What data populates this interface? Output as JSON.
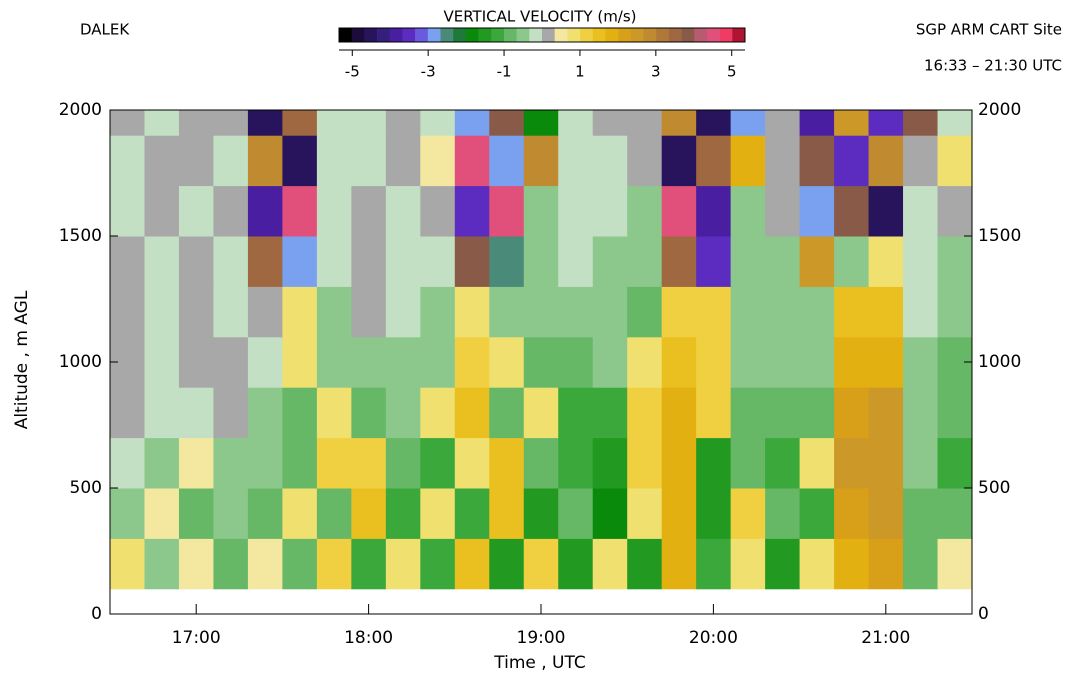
{
  "chart_data": {
    "type": "heatmap",
    "title": "DALEK",
    "colorbar_title": "VERTICAL VELOCITY (m/s)",
    "site": "SGP ARM CART Site",
    "time_range": "16:33 – 21:30 UTC",
    "x_label": "Time , UTC",
    "y_label": "Altitude , m AGL",
    "xlim": [
      16.5,
      21.5
    ],
    "xticks": [
      {
        "value": 17,
        "label": "17:00"
      },
      {
        "value": 18,
        "label": "18:00"
      },
      {
        "value": 19,
        "label": "19:00"
      },
      {
        "value": 20,
        "label": "20:00"
      },
      {
        "value": 21,
        "label": "21:00"
      }
    ],
    "ylim": [
      0,
      2000
    ],
    "yticks": [
      0,
      500,
      1000,
      1500,
      2000
    ],
    "clim": [
      -5.35,
      5.35
    ],
    "cticks": [
      -5,
      -3,
      -1,
      1,
      3,
      5
    ],
    "colors": [
      "#000000",
      "#1c0c3c",
      "#28145c",
      "#34207c",
      "#4a1ea0",
      "#5c2cc0",
      "#6a5ae0",
      "#7aa0f0",
      "#4a8a78",
      "#1e7a3a",
      "#0a8a0a",
      "#229a22",
      "#3aa83a",
      "#66b866",
      "#8cc88c",
      "#c4e0c4",
      "#a8a8a8",
      "#f4e8a0",
      "#f0e070",
      "#f0d040",
      "#eac020",
      "#e2b010",
      "#d8a018",
      "#cc9828",
      "#c08a30",
      "#b07838",
      "#a06840",
      "#8a5a48",
      "#b85a70",
      "#e0507a",
      "#f03c64",
      "#b01430"
    ],
    "x_edges": [
      16.5,
      16.7,
      16.9,
      17.1,
      17.3,
      17.5,
      17.7,
      17.9,
      18.1,
      18.3,
      18.5,
      18.7,
      18.9,
      19.1,
      19.3,
      19.5,
      19.7,
      19.9,
      20.1,
      20.3,
      20.5,
      20.7,
      20.9,
      21.1,
      21.3,
      21.5
    ],
    "y_edges": [
      100,
      300,
      500,
      700,
      900,
      1100,
      1300,
      1500,
      1700,
      1900,
      2000
    ],
    "values": [
      [
        0.8,
        -0.6,
        0.5,
        -0.8,
        0.6,
        -1.0,
        1.2,
        -1.2,
        0.9,
        -1.3,
        1.5,
        -1.4,
        1.1,
        -1.6,
        0.7,
        -1.5,
        1.8,
        -1.2,
        1.0,
        -1.4,
        0.9,
        1.9,
        2.2,
        -1.0,
        0.6
      ],
      [
        -0.5,
        0.6,
        -0.8,
        -0.4,
        -1.0,
        0.9,
        -0.9,
        1.4,
        -1.1,
        0.8,
        -1.2,
        1.6,
        -1.4,
        -0.9,
        -1.8,
        1.0,
        2.0,
        -1.5,
        1.2,
        -1.0,
        -1.2,
        2.3,
        2.5,
        -0.8,
        -1.0
      ],
      [
        -0.3,
        -0.5,
        0.4,
        -0.6,
        -0.5,
        -0.8,
        1.3,
        1.1,
        -1.0,
        -1.2,
        0.9,
        1.5,
        -1.0,
        -1.3,
        -1.6,
        1.2,
        1.8,
        -1.4,
        -0.9,
        -1.1,
        1.0,
        2.4,
        2.6,
        -0.6,
        -1.1
      ],
      [
        0.0,
        -0.3,
        -0.3,
        0.0,
        -0.4,
        -0.7,
        1.0,
        -0.9,
        -0.6,
        1.0,
        1.4,
        -1.0,
        0.8,
        -1.1,
        -1.2,
        1.1,
        1.7,
        1.2,
        -0.8,
        -0.7,
        -0.9,
        2.2,
        2.4,
        -0.5,
        -0.8
      ],
      [
        0.0,
        -0.3,
        0.0,
        0.0,
        -0.3,
        0.8,
        -0.5,
        -0.6,
        -0.4,
        -0.5,
        1.2,
        1.0,
        -0.8,
        -0.9,
        -0.6,
        0.9,
        1.5,
        1.3,
        -0.6,
        -0.5,
        -0.6,
        1.8,
        2.0,
        -0.4,
        -0.7
      ],
      [
        0.0,
        -0.3,
        0.0,
        -0.3,
        0.0,
        1.0,
        -0.4,
        0.0,
        -0.3,
        -0.4,
        0.9,
        -0.6,
        -0.5,
        -0.6,
        -0.5,
        -0.7,
        1.2,
        1.1,
        -0.5,
        -0.6,
        -0.5,
        1.4,
        1.5,
        -0.3,
        -0.5
      ],
      [
        0.0,
        -0.3,
        0.0,
        -0.3,
        3.5,
        -3.0,
        -0.3,
        0.0,
        -0.3,
        -0.3,
        4.0,
        -2.5,
        -0.5,
        -0.3,
        -0.4,
        -0.6,
        3.5,
        -3.5,
        -0.5,
        -0.4,
        2.5,
        -0.4,
        0.9,
        -0.3,
        -0.4
      ],
      [
        -0.3,
        0.0,
        -0.3,
        0.0,
        -4.0,
        4.5,
        -0.3,
        0.0,
        -0.3,
        0.0,
        -3.5,
        4.5,
        -0.4,
        -0.3,
        -0.3,
        -0.4,
        4.5,
        -4.0,
        -0.4,
        0.0,
        -3.0,
        4.0,
        -4.5,
        -0.3,
        0.0
      ],
      [
        -0.3,
        0.0,
        0.0,
        -0.3,
        3.0,
        -4.5,
        -0.3,
        -0.3,
        0.0,
        0.6,
        4.5,
        -3.0,
        3.0,
        -0.3,
        -0.3,
        0.0,
        -4.5,
        3.5,
        2.0,
        0.0,
        4.0,
        -3.5,
        3.0,
        0.0,
        0.7
      ],
      [
        0.0,
        -0.3,
        0.0,
        0.0,
        -4.5,
        3.5,
        -0.3,
        -0.3,
        0.0,
        -0.3,
        -3.0,
        4.0,
        -2.0,
        -0.3,
        0.0,
        0.0,
        3.0,
        -4.5,
        -3.0,
        0.0,
        -4.0,
        2.5,
        -3.5,
        4.0,
        -0.3
      ]
    ]
  }
}
